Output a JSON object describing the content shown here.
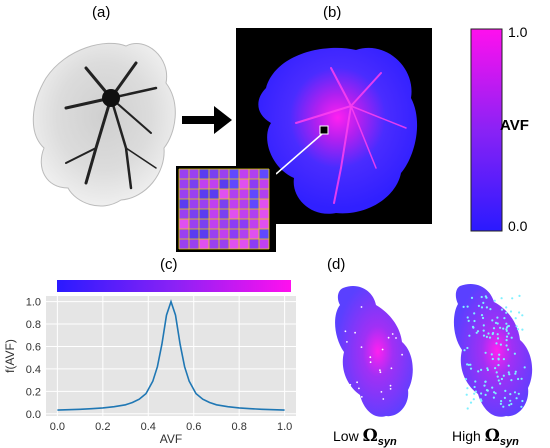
{
  "panels": {
    "a": {
      "label": "(a)"
    },
    "b": {
      "label": "(b)"
    },
    "c": {
      "label": "(c)"
    },
    "d": {
      "label": "(d)"
    }
  },
  "colorbar": {
    "title": "AVF",
    "max_label": "1.0",
    "min_label": "0.0",
    "colors": {
      "low": "#2a1aff",
      "mid": "#8a22f5",
      "high": "#ff10ee"
    }
  },
  "caption_low": {
    "prefix": "Low",
    "omega": "Ω",
    "subscript": "syn"
  },
  "caption_high": {
    "prefix": "High",
    "omega": "Ω",
    "subscript": "syn"
  },
  "chart_data": {
    "type": "line",
    "title": "",
    "xlabel": "AVF",
    "ylabel": "f(AVF)",
    "xlim": [
      -0.05,
      1.05
    ],
    "ylim": [
      -0.02,
      1.05
    ],
    "xticks": [
      "0.0",
      "0.2",
      "0.4",
      "0.6",
      "0.8",
      "1.0"
    ],
    "yticks": [
      "0.0",
      "0.2",
      "0.4",
      "0.6",
      "0.8",
      "1.0"
    ],
    "grid": true,
    "series": [
      {
        "color": "#1f77b4",
        "x": [
          0.0,
          0.05,
          0.1,
          0.15,
          0.2,
          0.25,
          0.3,
          0.33,
          0.36,
          0.39,
          0.42,
          0.44,
          0.46,
          0.48,
          0.5,
          0.52,
          0.54,
          0.56,
          0.58,
          0.61,
          0.64,
          0.67,
          0.7,
          0.75,
          0.8,
          0.85,
          0.9,
          0.95,
          1.0
        ],
        "y": [
          0.033,
          0.036,
          0.04,
          0.045,
          0.052,
          0.063,
          0.08,
          0.1,
          0.13,
          0.18,
          0.29,
          0.42,
          0.62,
          0.88,
          1.0,
          0.88,
          0.62,
          0.42,
          0.29,
          0.18,
          0.13,
          0.1,
          0.08,
          0.063,
          0.052,
          0.045,
          0.04,
          0.036,
          0.033
        ]
      }
    ]
  }
}
